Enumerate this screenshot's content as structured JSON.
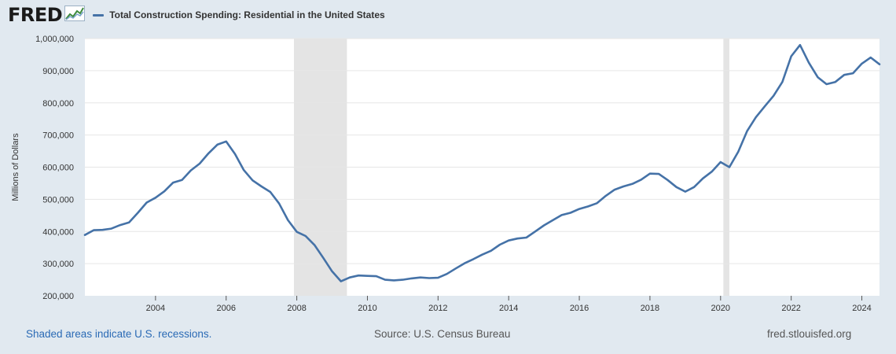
{
  "header": {
    "logo_text": "FRED",
    "logo_icon": "fred-graph-icon",
    "legend_label": "Total Construction Spending: Residential in the United States"
  },
  "footer": {
    "recessions_note": "Shaded areas indicate U.S. recessions.",
    "source": "Source: U.S. Census Bureau",
    "site": "fred.stlouisfed.org"
  },
  "colors": {
    "line": "#4572a7",
    "recession": "#e4e4e4",
    "background": "#e1e9f0",
    "plot": "#ffffff",
    "grid": "#e6e6e6"
  },
  "chart_data": {
    "type": "line",
    "ylabel": "Millions of Dollars",
    "xlabel": "",
    "x_range": [
      2002.0,
      2024.5
    ],
    "ylim": [
      200000,
      1000000
    ],
    "y_ticks": [
      200000,
      300000,
      400000,
      500000,
      600000,
      700000,
      800000,
      900000,
      1000000
    ],
    "y_tick_labels": [
      "200,000",
      "300,000",
      "400,000",
      "500,000",
      "600,000",
      "700,000",
      "800,000",
      "900,000",
      "1,000,000"
    ],
    "x_ticks": [
      2004,
      2006,
      2008,
      2010,
      2012,
      2014,
      2016,
      2018,
      2020,
      2022,
      2024
    ],
    "x_tick_labels": [
      "2004",
      "2006",
      "2008",
      "2010",
      "2012",
      "2014",
      "2016",
      "2018",
      "2020",
      "2022",
      "2024"
    ],
    "grid": true,
    "recessions": [
      [
        2007.92,
        2009.42
      ],
      [
        2020.08,
        2020.25
      ]
    ],
    "series": [
      {
        "values": [
          [
            2002.0,
            389000
          ],
          [
            2002.25,
            404000
          ],
          [
            2002.5,
            405000
          ],
          [
            2002.75,
            409000
          ],
          [
            2003.0,
            420000
          ],
          [
            2003.25,
            428000
          ],
          [
            2003.5,
            458000
          ],
          [
            2003.75,
            490000
          ],
          [
            2004.0,
            505000
          ],
          [
            2004.25,
            525000
          ],
          [
            2004.5,
            552000
          ],
          [
            2004.75,
            560000
          ],
          [
            2005.0,
            590000
          ],
          [
            2005.25,
            611000
          ],
          [
            2005.5,
            643000
          ],
          [
            2005.75,
            670000
          ],
          [
            2006.0,
            680000
          ],
          [
            2006.25,
            641000
          ],
          [
            2006.5,
            591000
          ],
          [
            2006.75,
            559000
          ],
          [
            2007.0,
            540000
          ],
          [
            2007.25,
            523000
          ],
          [
            2007.5,
            487000
          ],
          [
            2007.75,
            435000
          ],
          [
            2008.0,
            399000
          ],
          [
            2008.25,
            386000
          ],
          [
            2008.5,
            358000
          ],
          [
            2008.75,
            318000
          ],
          [
            2009.0,
            276000
          ],
          [
            2009.25,
            245000
          ],
          [
            2009.5,
            257000
          ],
          [
            2009.75,
            263000
          ],
          [
            2010.0,
            262000
          ],
          [
            2010.25,
            261000
          ],
          [
            2010.5,
            250000
          ],
          [
            2010.75,
            248000
          ],
          [
            2011.0,
            250000
          ],
          [
            2011.25,
            254000
          ],
          [
            2011.5,
            257000
          ],
          [
            2011.75,
            255000
          ],
          [
            2012.0,
            256000
          ],
          [
            2012.25,
            268000
          ],
          [
            2012.5,
            285000
          ],
          [
            2012.75,
            301000
          ],
          [
            2013.0,
            314000
          ],
          [
            2013.25,
            328000
          ],
          [
            2013.5,
            340000
          ],
          [
            2013.75,
            359000
          ],
          [
            2014.0,
            372000
          ],
          [
            2014.25,
            378000
          ],
          [
            2014.5,
            381000
          ],
          [
            2014.75,
            400000
          ],
          [
            2015.0,
            419000
          ],
          [
            2015.25,
            435000
          ],
          [
            2015.5,
            451000
          ],
          [
            2015.75,
            458000
          ],
          [
            2016.0,
            470000
          ],
          [
            2016.25,
            478000
          ],
          [
            2016.5,
            488000
          ],
          [
            2016.75,
            511000
          ],
          [
            2017.0,
            530000
          ],
          [
            2017.25,
            540000
          ],
          [
            2017.5,
            548000
          ],
          [
            2017.75,
            561000
          ],
          [
            2018.0,
            580000
          ],
          [
            2018.25,
            579000
          ],
          [
            2018.5,
            560000
          ],
          [
            2018.75,
            538000
          ],
          [
            2019.0,
            524000
          ],
          [
            2019.25,
            538000
          ],
          [
            2019.5,
            565000
          ],
          [
            2019.75,
            586000
          ],
          [
            2020.0,
            616000
          ],
          [
            2020.25,
            600000
          ],
          [
            2020.5,
            648000
          ],
          [
            2020.75,
            712000
          ],
          [
            2021.0,
            755000
          ],
          [
            2021.25,
            789000
          ],
          [
            2021.5,
            822000
          ],
          [
            2021.75,
            865000
          ],
          [
            2022.0,
            945000
          ],
          [
            2022.25,
            980000
          ],
          [
            2022.5,
            925000
          ],
          [
            2022.75,
            880000
          ],
          [
            2023.0,
            858000
          ],
          [
            2023.25,
            865000
          ],
          [
            2023.5,
            887000
          ],
          [
            2023.75,
            892000
          ],
          [
            2024.0,
            922000
          ],
          [
            2024.25,
            941000
          ],
          [
            2024.5,
            920000
          ]
        ]
      }
    ]
  }
}
